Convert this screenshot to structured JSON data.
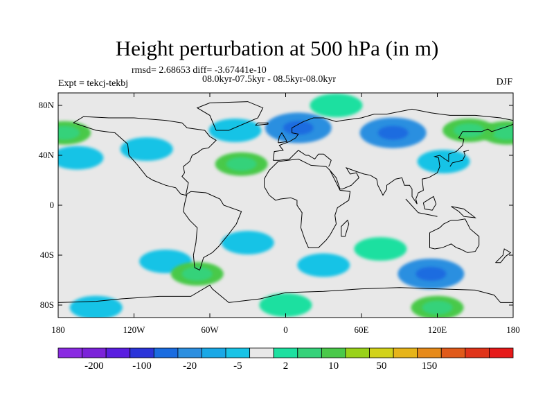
{
  "title": "Height perturbation at 500 hPa (in m)",
  "stats_line": "rmsd= 2.68653 diff= -3.67441e-10",
  "periods_line": "08.0kyr-07.5kyr - 08.5kyr-08.0kyr",
  "experiment_label": "Expt = tekcj-tekbj",
  "season_label": "DJF",
  "lat_ticks": [
    "80N",
    "40N",
    "0",
    "40S",
    "80S"
  ],
  "lon_ticks": [
    "180",
    "120W",
    "60W",
    "0",
    "60E",
    "120E",
    "180"
  ],
  "colorbar": {
    "labels": [
      "-200",
      "-100",
      "-20",
      "-5",
      "2",
      "10",
      "50",
      "150"
    ],
    "colors": [
      "#8a2be2",
      "#7b22d9",
      "#5a1ee0",
      "#2b34d9",
      "#1a6ce0",
      "#2c8fe0",
      "#1aa8e6",
      "#19c3e6",
      "#e8e8e8",
      "#1de0a0",
      "#35d27a",
      "#4ac94a",
      "#99d21a",
      "#d2d21a",
      "#e6b41a",
      "#e68a1a",
      "#e05a1a",
      "#e0341a",
      "#e61a1a"
    ]
  },
  "chart_data": {
    "type": "heatmap",
    "title": "Height perturbation at 500 hPa (in m)",
    "x_ticks": [
      "180",
      "120W",
      "60W",
      "0",
      "60E",
      "120E",
      "180"
    ],
    "y_ticks": [
      "80N",
      "40N",
      "0",
      "40S",
      "80S"
    ],
    "xlim": [
      -180,
      180
    ],
    "ylim": [
      -90,
      90
    ],
    "colorbar_levels": [
      -200,
      -100,
      -20,
      -5,
      2,
      10,
      50,
      150
    ],
    "anomalies": [
      {
        "lon": -110,
        "lat": 45,
        "value": -5
      },
      {
        "lon": -165,
        "lat": 38,
        "value": -5
      },
      {
        "lon": -40,
        "lat": 60,
        "value": -5
      },
      {
        "lon": 10,
        "lat": 62,
        "value": -20
      },
      {
        "lon": 85,
        "lat": 58,
        "value": -20
      },
      {
        "lon": 125,
        "lat": 35,
        "value": -5
      },
      {
        "lon": -35,
        "lat": 33,
        "value": 10
      },
      {
        "lon": 175,
        "lat": 58,
        "value": 10
      },
      {
        "lon": -175,
        "lat": 58,
        "value": 10
      },
      {
        "lon": 40,
        "lat": 80,
        "value": 2
      },
      {
        "lon": 145,
        "lat": 60,
        "value": 10
      },
      {
        "lon": -95,
        "lat": -45,
        "value": -5
      },
      {
        "lon": -70,
        "lat": -55,
        "value": 10
      },
      {
        "lon": -30,
        "lat": -30,
        "value": -5
      },
      {
        "lon": 30,
        "lat": -48,
        "value": -5
      },
      {
        "lon": 75,
        "lat": -35,
        "value": 2
      },
      {
        "lon": 115,
        "lat": -55,
        "value": -20
      },
      {
        "lon": -150,
        "lat": -82,
        "value": -5
      },
      {
        "lon": 0,
        "lat": -80,
        "value": 2
      },
      {
        "lon": 120,
        "lat": -82,
        "value": 10
      }
    ]
  }
}
